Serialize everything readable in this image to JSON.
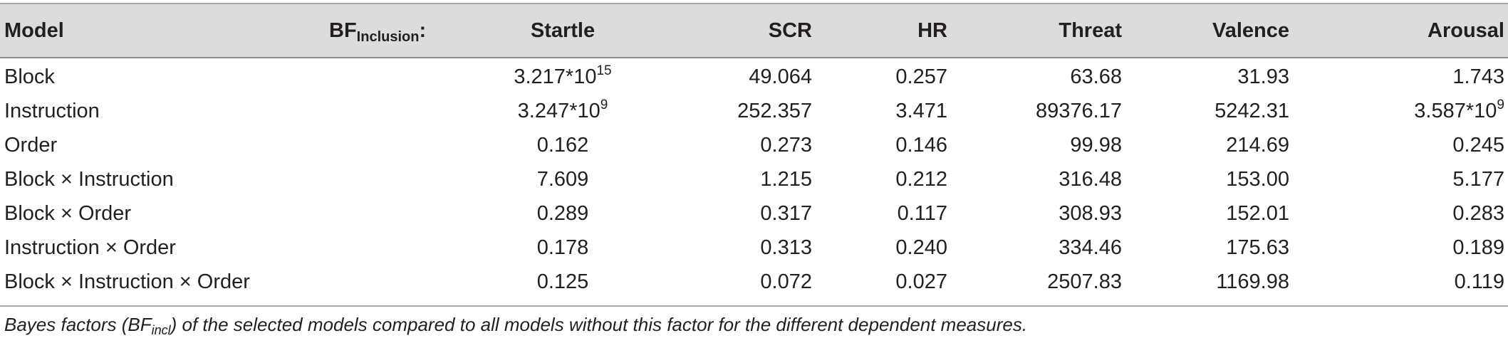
{
  "table": {
    "headers": {
      "model": "Model",
      "bf_main": "BF",
      "bf_sub": "Inclusion",
      "bf_colon": ":",
      "startle": "Startle",
      "scr": "SCR",
      "hr": "HR",
      "threat": "Threat",
      "valence": "Valence",
      "arousal": "Arousal"
    },
    "rows": [
      {
        "model": "Block",
        "startle": {
          "base": "3.217*10",
          "exp": "15"
        },
        "scr": "49.064",
        "hr": "0.257",
        "threat": "63.68",
        "valence": "31.93",
        "arousal": {
          "base": "1.743",
          "exp": ""
        }
      },
      {
        "model": "Instruction",
        "startle": {
          "base": "3.247*10",
          "exp": "9"
        },
        "scr": "252.357",
        "hr": "3.471",
        "threat": "89376.17",
        "valence": "5242.31",
        "arousal": {
          "base": "3.587*10",
          "exp": "9"
        }
      },
      {
        "model": "Order",
        "startle": {
          "base": "0.162",
          "exp": ""
        },
        "scr": "0.273",
        "hr": "0.146",
        "threat": "99.98",
        "valence": "214.69",
        "arousal": {
          "base": "0.245",
          "exp": ""
        }
      },
      {
        "model": "Block × Instruction",
        "startle": {
          "base": "7.609",
          "exp": ""
        },
        "scr": "1.215",
        "hr": "0.212",
        "threat": "316.48",
        "valence": "153.00",
        "arousal": {
          "base": "5.177",
          "exp": ""
        }
      },
      {
        "model": "Block × Order",
        "startle": {
          "base": "0.289",
          "exp": ""
        },
        "scr": "0.317",
        "hr": "0.117",
        "threat": "308.93",
        "valence": "152.01",
        "arousal": {
          "base": "0.283",
          "exp": ""
        }
      },
      {
        "model": "Instruction × Order",
        "startle": {
          "base": "0.178",
          "exp": ""
        },
        "scr": "0.313",
        "hr": "0.240",
        "threat": "334.46",
        "valence": "175.63",
        "arousal": {
          "base": "0.189",
          "exp": ""
        }
      },
      {
        "model": "Block × Instruction × Order",
        "startle": {
          "base": "0.125",
          "exp": ""
        },
        "scr": "0.072",
        "hr": "0.027",
        "threat": "2507.83",
        "valence": "1169.98",
        "arousal": {
          "base": "0.119",
          "exp": ""
        }
      }
    ]
  },
  "caption": {
    "before": "Bayes factors (BF",
    "sub": "incl",
    "after": ") of the selected models compared to all models without this factor for the different dependent measures."
  }
}
